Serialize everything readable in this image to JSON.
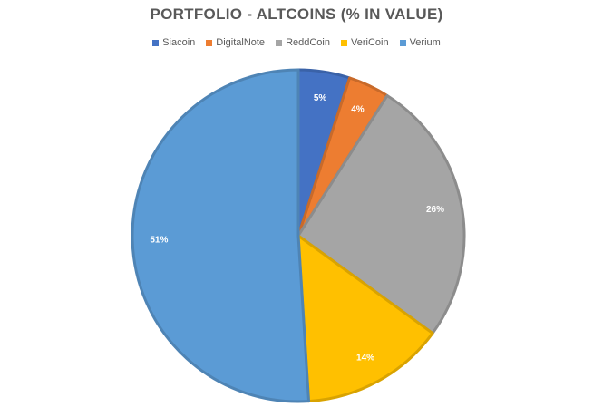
{
  "chart_data": {
    "type": "pie",
    "title": "PORTFOLIO - ALTCOINS (% IN VALUE)",
    "categories": [
      "Siacoin",
      "DigitalNote",
      "ReddCoin",
      "VeriCoin",
      "Verium"
    ],
    "values": [
      5,
      4,
      26,
      14,
      51
    ],
    "labels": [
      "5%",
      "4%",
      "26%",
      "14%",
      "51%"
    ],
    "colors": [
      "#4472C4",
      "#ED7D31",
      "#A5A5A5",
      "#FFC000",
      "#5B9BD5"
    ],
    "border_colors": [
      "#3A62A8",
      "#C86A2A",
      "#8C8C8C",
      "#D9A300",
      "#4E84B5"
    ],
    "legend": "top"
  }
}
